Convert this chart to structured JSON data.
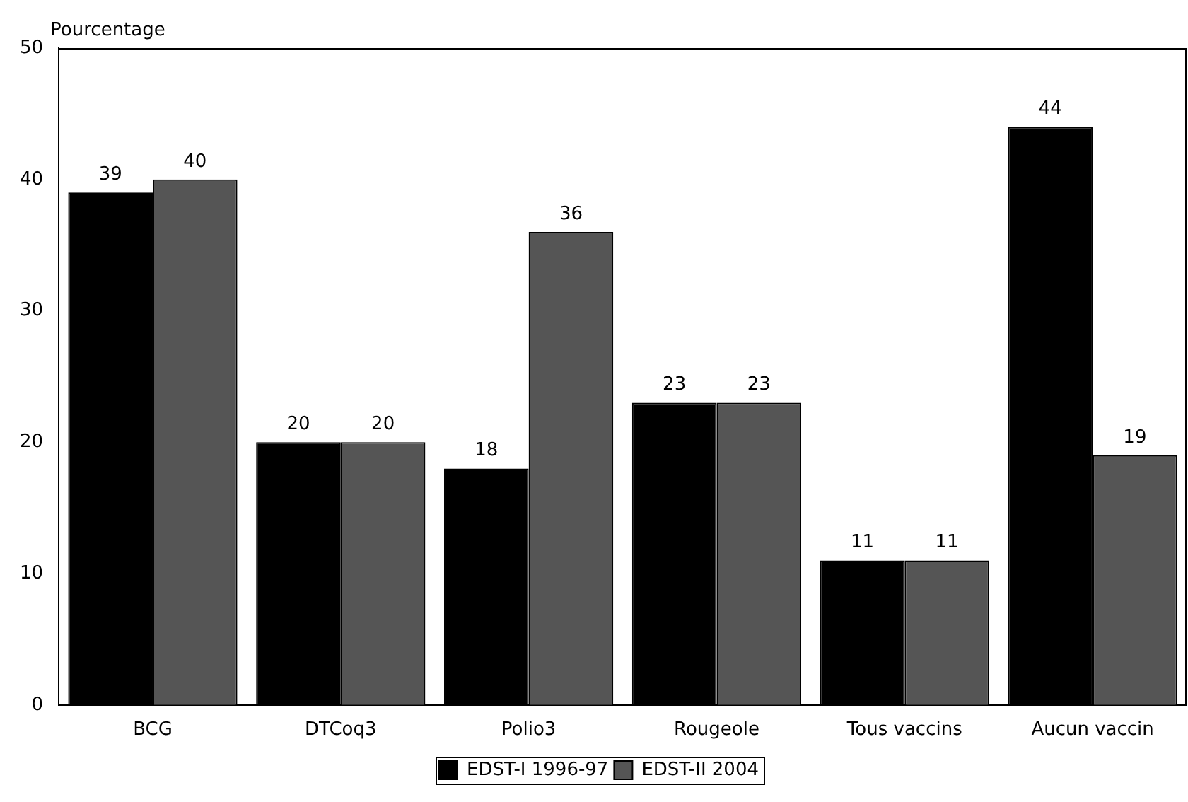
{
  "chart_data": {
    "type": "bar",
    "ylabel": "Pourcentage",
    "categories": [
      "BCG",
      "DTCoq3",
      "Polio3",
      "Rougeole",
      "Tous vaccins",
      "Aucun vaccin"
    ],
    "series": [
      {
        "name": "EDST-I 1996-97",
        "color": "#000000",
        "values": [
          39,
          20,
          18,
          23,
          11,
          44
        ]
      },
      {
        "name": "EDST-II 2004",
        "color": "#555555",
        "values": [
          40,
          20,
          36,
          23,
          11,
          19
        ]
      }
    ],
    "ylim": [
      0,
      50
    ],
    "yticks": [
      0,
      10,
      20,
      30,
      40,
      50
    ],
    "grid": false,
    "legend": "bottom",
    "data_labels": true
  }
}
